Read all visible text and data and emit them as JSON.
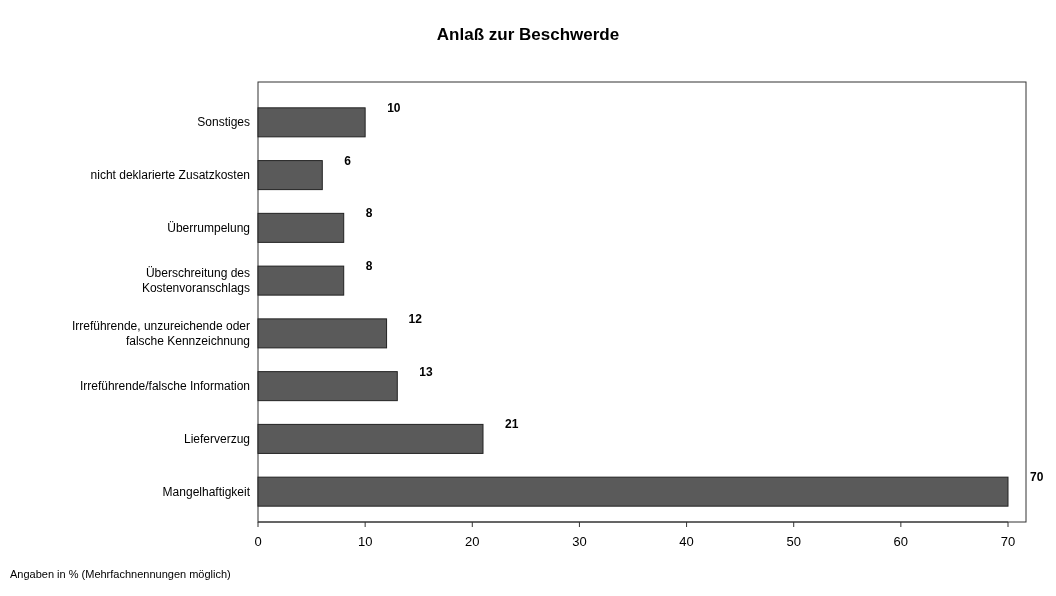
{
  "chart_data": {
    "type": "bar",
    "orientation": "horizontal",
    "title": "Anlaß zur Beschwerde",
    "categories": [
      "Sonstiges",
      "nicht deklarierte Zusatzkosten",
      "Überrumpelung",
      "Überschreitung des Kostenvoranschlags",
      "Irreführende, unzureichende oder falsche Kennzeichnung",
      "Irreführende/falsche Information",
      "Lieferverzug",
      "Mangelhaftigkeit"
    ],
    "values": [
      10,
      6,
      8,
      8,
      12,
      13,
      21,
      70
    ],
    "color": "#5a5a5a",
    "xlim": [
      0,
      70
    ],
    "xticks": [
      0,
      10,
      20,
      30,
      40,
      50,
      60,
      70
    ],
    "data_labels": true,
    "annotations": [
      "Angaben in % (Mehrfachnennungen möglich)"
    ]
  }
}
